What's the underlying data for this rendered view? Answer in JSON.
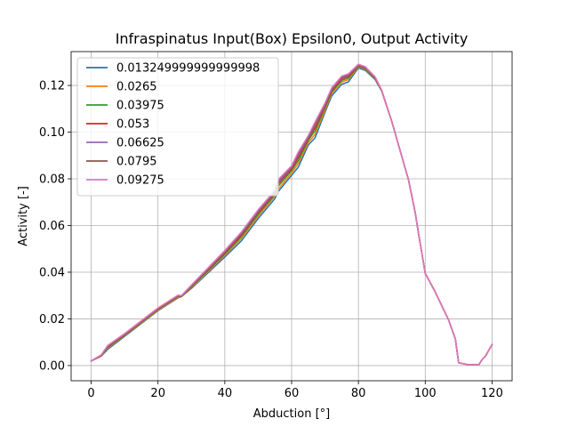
{
  "chart_data": {
    "type": "line",
    "title": "Infraspinatus Input(Box) Epsilon0, Output Activity",
    "xlabel": "Abduction [°]",
    "ylabel": "Activity [-]",
    "xlim": [
      -6,
      126
    ],
    "ylim": [
      -0.0065,
      0.1345
    ],
    "xticks": [
      0,
      20,
      40,
      60,
      80,
      100,
      120
    ],
    "xtick_labels": [
      "0",
      "20",
      "40",
      "60",
      "80",
      "100",
      "120"
    ],
    "yticks": [
      0.0,
      0.02,
      0.04,
      0.06,
      0.08,
      0.1,
      0.12
    ],
    "ytick_labels": [
      "0.00",
      "0.02",
      "0.04",
      "0.06",
      "0.08",
      "0.10",
      "0.12"
    ],
    "grid": true,
    "legend_position": "top-left",
    "x": [
      0,
      3,
      5,
      10,
      20,
      26,
      27,
      30,
      40,
      45,
      50,
      55,
      56,
      60,
      62,
      65,
      67,
      70,
      72,
      75,
      77,
      80,
      82,
      85,
      87,
      90,
      95,
      97,
      98,
      100,
      103,
      106,
      107,
      108,
      109,
      110,
      113,
      116,
      117,
      118,
      120
    ],
    "series": [
      {
        "name": "0.013249999999999998",
        "color": "#1f77b4",
        "values": [
          0.002,
          0.004,
          0.007,
          0.0125,
          0.0235,
          0.029,
          0.0295,
          0.033,
          0.0465,
          0.0535,
          0.063,
          0.0715,
          0.0745,
          0.0815,
          0.085,
          0.0945,
          0.0975,
          0.1085,
          0.1155,
          0.1205,
          0.1215,
          0.1275,
          0.1265,
          0.1225,
          0.1175,
          0.1045,
          0.0795,
          0.0655,
          0.0565,
          0.0395,
          0.0315,
          0.0225,
          0.0195,
          0.0155,
          0.0115,
          0.0012,
          0.0003,
          0.0003,
          0.0025,
          0.004,
          0.009
        ]
      },
      {
        "name": "0.0265",
        "color": "#ff7f0e",
        "values": [
          0.002,
          0.004,
          0.0075,
          0.0128,
          0.0238,
          0.0292,
          0.0295,
          0.0333,
          0.0472,
          0.0545,
          0.064,
          0.0725,
          0.0755,
          0.0825,
          0.0865,
          0.0955,
          0.099,
          0.1095,
          0.1165,
          0.1215,
          0.1225,
          0.128,
          0.127,
          0.1228,
          0.1175,
          0.1045,
          0.0795,
          0.0655,
          0.0565,
          0.0395,
          0.0315,
          0.0225,
          0.0195,
          0.0155,
          0.0115,
          0.0012,
          0.0003,
          0.0003,
          0.0025,
          0.004,
          0.009
        ]
      },
      {
        "name": "0.03975",
        "color": "#2ca02c",
        "values": [
          0.002,
          0.0042,
          0.0078,
          0.013,
          0.0241,
          0.0295,
          0.0296,
          0.0336,
          0.0478,
          0.0553,
          0.0648,
          0.0732,
          0.0768,
          0.0835,
          0.0878,
          0.0965,
          0.1005,
          0.1105,
          0.1172,
          0.1222,
          0.1232,
          0.1283,
          0.1273,
          0.123,
          0.1176,
          0.1045,
          0.0795,
          0.0655,
          0.0565,
          0.0395,
          0.0315,
          0.0225,
          0.0195,
          0.0155,
          0.0115,
          0.0012,
          0.0003,
          0.0003,
          0.0025,
          0.004,
          0.009
        ]
      },
      {
        "name": "0.053",
        "color": "#d62728",
        "values": [
          0.002,
          0.0043,
          0.0081,
          0.0132,
          0.0243,
          0.0297,
          0.0297,
          0.0339,
          0.0483,
          0.056,
          0.0655,
          0.0738,
          0.0778,
          0.0842,
          0.089,
          0.0972,
          0.1018,
          0.1112,
          0.1178,
          0.1228,
          0.1238,
          0.1286,
          0.1276,
          0.1232,
          0.1177,
          0.1045,
          0.0795,
          0.0655,
          0.0565,
          0.0395,
          0.0315,
          0.0225,
          0.0195,
          0.0155,
          0.0115,
          0.0012,
          0.0003,
          0.0003,
          0.0025,
          0.004,
          0.009
        ]
      },
      {
        "name": "0.06625",
        "color": "#9467bd",
        "values": [
          0.002,
          0.0044,
          0.0083,
          0.0134,
          0.0245,
          0.0299,
          0.0298,
          0.0341,
          0.0487,
          0.0565,
          0.0661,
          0.0743,
          0.0786,
          0.0848,
          0.09,
          0.0978,
          0.1028,
          0.1118,
          0.1183,
          0.1233,
          0.1243,
          0.1288,
          0.1278,
          0.1234,
          0.1178,
          0.1045,
          0.0795,
          0.0655,
          0.0565,
          0.0395,
          0.0315,
          0.0225,
          0.0195,
          0.0155,
          0.0115,
          0.0012,
          0.0003,
          0.0003,
          0.0025,
          0.004,
          0.009
        ]
      },
      {
        "name": "0.0795",
        "color": "#8c564b",
        "values": [
          0.002,
          0.0045,
          0.0085,
          0.0135,
          0.0246,
          0.03,
          0.0299,
          0.0343,
          0.049,
          0.0569,
          0.0665,
          0.0747,
          0.0792,
          0.0852,
          0.0908,
          0.0982,
          0.1036,
          0.1122,
          0.1187,
          0.1237,
          0.1247,
          0.129,
          0.128,
          0.1236,
          0.1178,
          0.1045,
          0.0795,
          0.0655,
          0.0565,
          0.0395,
          0.0315,
          0.0225,
          0.0195,
          0.0155,
          0.0115,
          0.0012,
          0.0003,
          0.0003,
          0.0025,
          0.004,
          0.009
        ]
      },
      {
        "name": "0.09275",
        "color": "#e377c2",
        "values": [
          0.002,
          0.0046,
          0.0087,
          0.0137,
          0.0247,
          0.0302,
          0.03,
          0.0345,
          0.0493,
          0.0573,
          0.0668,
          0.075,
          0.0797,
          0.0856,
          0.0915,
          0.0986,
          0.1043,
          0.1125,
          0.119,
          0.124,
          0.125,
          0.1291,
          0.1281,
          0.1237,
          0.1179,
          0.1045,
          0.0795,
          0.0655,
          0.0565,
          0.0395,
          0.0315,
          0.0225,
          0.0195,
          0.0155,
          0.0115,
          0.0012,
          0.0003,
          0.0003,
          0.0025,
          0.004,
          0.009
        ]
      }
    ]
  }
}
